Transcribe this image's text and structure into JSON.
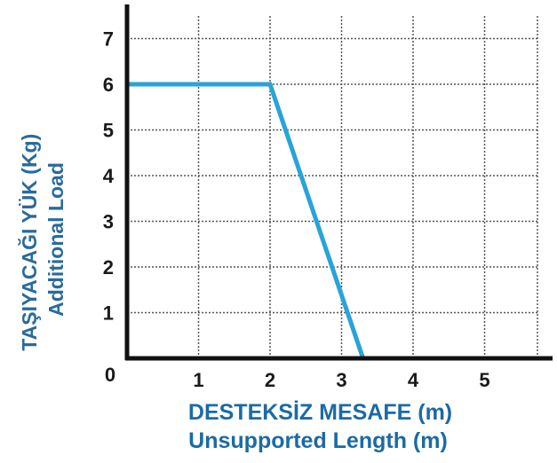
{
  "chart_data": {
    "type": "line",
    "xlabel": [
      "DESTEKSİZ MESAFE (m)",
      "Unsupported Length (m)"
    ],
    "ylabel": [
      "TAŞIYACAĞI YÜK  (Kg)",
      "Additional Load"
    ],
    "origin_label": "0",
    "x_ticks": [
      1,
      2,
      3,
      4,
      5
    ],
    "y_ticks": [
      1,
      2,
      3,
      4,
      5,
      6,
      7
    ],
    "xlim": [
      0,
      6
    ],
    "ylim": [
      0,
      7.5
    ],
    "grid": true,
    "series": [
      {
        "x": [
          0,
          2,
          3.3
        ],
        "y": [
          6,
          6,
          0
        ]
      }
    ],
    "colors": {
      "line": "#29a3d9",
      "axis": "#111111",
      "grid": "#555555",
      "x_label": "#1b6aa6",
      "y_label": "#2a6a9c"
    }
  }
}
